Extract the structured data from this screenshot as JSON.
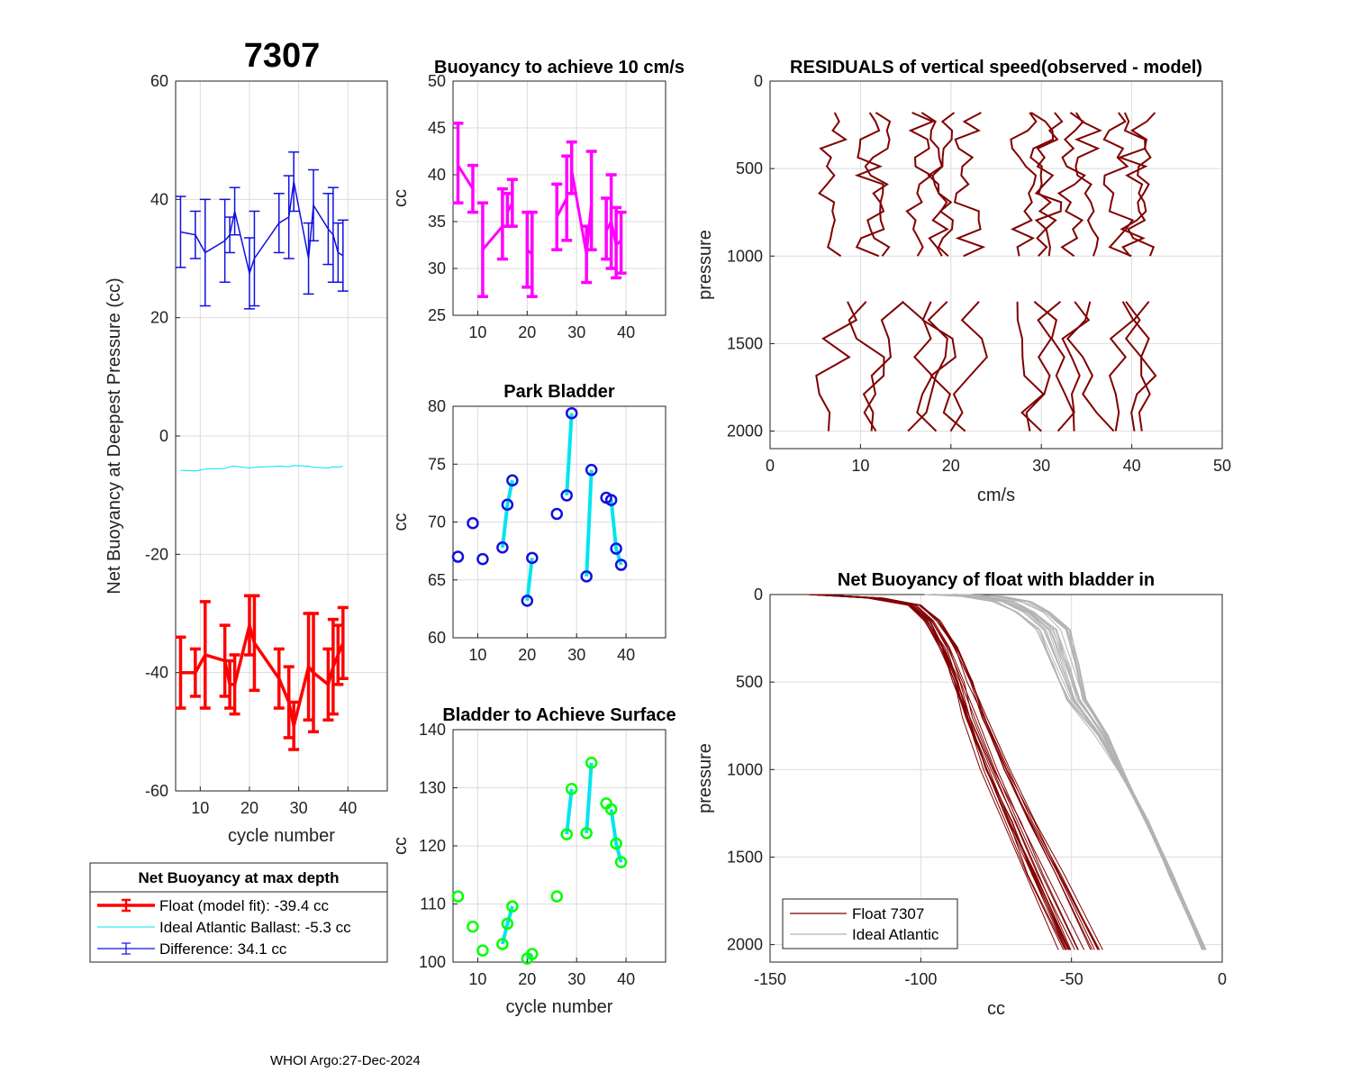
{
  "main_title": "7307",
  "footer": "WHOI Argo:27-Dec-2024",
  "colors": {
    "blue": "#1010e0",
    "red": "#ff0000",
    "cyan": "#00e5f0",
    "magenta": "#ff00ff",
    "green": "#00ff00",
    "dark_red": "#800000",
    "gray": "#b3b3b3"
  },
  "legend_main": {
    "title": "Net Buoyancy at max depth",
    "float": "Float (model fit): -39.4 cc",
    "ideal": "Ideal Atlantic Ballast:  -5.3 cc",
    "diff": "Difference:  34.1 cc"
  },
  "chart_data": [
    {
      "id": "net_buoyancy_deepest",
      "type": "line",
      "title": "7307",
      "xlabel": "cycle number",
      "ylabel": "Net Buoyancy at Deepest Pressure (cc)",
      "xlim": [
        5,
        48
      ],
      "ylim": [
        -60,
        60
      ],
      "xticks": [
        10,
        20,
        30,
        40
      ],
      "yticks": [
        -60,
        -40,
        -20,
        0,
        20,
        40,
        60
      ],
      "series": [
        {
          "name": "Difference",
          "color": "blue",
          "x": [
            6,
            9,
            11,
            15,
            16,
            17,
            20,
            21,
            26,
            28,
            29,
            32,
            33,
            36,
            37,
            38,
            39
          ],
          "y": [
            34.5,
            34,
            31,
            33,
            34,
            38,
            27.5,
            30,
            36,
            37,
            43,
            30,
            39,
            35,
            34,
            31,
            30.5
          ],
          "err": [
            6,
            4,
            9,
            7,
            3,
            4,
            6,
            8,
            5,
            7,
            5,
            6,
            6,
            6,
            8,
            5,
            6
          ]
        },
        {
          "name": "Ideal Atlantic Ballast",
          "color": "cyan",
          "x": [
            6,
            9,
            11,
            15,
            16,
            17,
            20,
            21,
            26,
            28,
            29,
            32,
            33,
            36,
            37,
            38,
            39
          ],
          "y": [
            -5.8,
            -5.9,
            -5.6,
            -5.5,
            -5.2,
            -5.1,
            -5.4,
            -5.3,
            -5.1,
            -5.2,
            -5.0,
            -5.1,
            -5.3,
            -5.4,
            -5.2,
            -5.3,
            -5.1
          ]
        },
        {
          "name": "Float (model fit)",
          "color": "red",
          "x": [
            6,
            9,
            11,
            15,
            16,
            17,
            20,
            21,
            26,
            28,
            29,
            32,
            33,
            36,
            37,
            38,
            39
          ],
          "y": [
            -40,
            -40,
            -37,
            -38,
            -42,
            -42,
            -32,
            -35,
            -41,
            -45,
            -49,
            -39,
            -40,
            -42,
            -39,
            -37,
            -35
          ],
          "err": [
            6,
            4,
            9,
            6,
            4,
            5,
            5,
            8,
            5,
            6,
            4,
            9,
            10,
            6,
            8,
            5,
            6
          ]
        }
      ]
    },
    {
      "id": "buoyancy_10cms",
      "type": "errorbar",
      "title": "Buoyancy to achieve 10 cm/s",
      "xlabel": "",
      "ylabel": "cc",
      "xlim": [
        5,
        48
      ],
      "ylim": [
        25,
        50
      ],
      "xticks": [
        10,
        20,
        30,
        40
      ],
      "yticks": [
        25,
        30,
        35,
        40,
        45,
        50
      ],
      "color": "magenta",
      "segments": [
        [
          6,
          9
        ],
        [
          11,
          15
        ],
        [
          16,
          17
        ],
        [
          20,
          21
        ],
        [
          26,
          28
        ],
        [
          29,
          32
        ],
        [
          32,
          33
        ],
        [
          36,
          37
        ],
        [
          37,
          38
        ],
        [
          38,
          39
        ]
      ],
      "x": [
        6,
        9,
        11,
        15,
        16,
        17,
        20,
        21,
        26,
        28,
        29,
        32,
        33,
        36,
        37,
        38,
        39
      ],
      "lo": [
        37,
        36,
        27,
        31,
        34.5,
        34.5,
        28,
        27,
        32,
        33,
        38,
        28.5,
        32,
        31,
        30,
        29,
        29.5
      ],
      "hi": [
        45.5,
        41,
        37,
        38.5,
        38,
        39.5,
        36,
        36,
        39,
        42,
        43.5,
        34.5,
        42.5,
        37.5,
        40,
        36.5,
        36
      ],
      "y": [
        41,
        38.5,
        32,
        34.5,
        36,
        37,
        32,
        31.5,
        35.5,
        37.5,
        40.5,
        31.5,
        37,
        34,
        35,
        32.5,
        33
      ]
    },
    {
      "id": "park_bladder",
      "type": "scatter",
      "title": "Park Bladder",
      "xlabel": "",
      "ylabel": "cc",
      "xlim": [
        5,
        48
      ],
      "ylim": [
        60,
        80
      ],
      "xticks": [
        10,
        20,
        30,
        40
      ],
      "yticks": [
        60,
        65,
        70,
        75,
        80
      ],
      "marker_color": "blue",
      "line_color": "cyan",
      "x": [
        6,
        9,
        11,
        15,
        16,
        17,
        20,
        21,
        26,
        28,
        29,
        32,
        33,
        36,
        37,
        38,
        39
      ],
      "y": [
        67,
        69.9,
        66.8,
        67.8,
        71.5,
        73.6,
        63.2,
        66.9,
        70.7,
        72.3,
        79.4,
        65.3,
        74.5,
        72.1,
        71.9,
        67.7,
        66.3
      ],
      "lines": [
        [
          15,
          17
        ],
        [
          20,
          21
        ],
        [
          28,
          29
        ],
        [
          32,
          33
        ],
        [
          37,
          39
        ]
      ]
    },
    {
      "id": "bladder_surface",
      "type": "scatter",
      "title": "Bladder to Achieve Surface",
      "xlabel": "cycle number",
      "ylabel": "cc",
      "xlim": [
        5,
        48
      ],
      "ylim": [
        100,
        140
      ],
      "xticks": [
        10,
        20,
        30,
        40
      ],
      "yticks": [
        100,
        110,
        120,
        130,
        140
      ],
      "marker_color": "green",
      "line_color": "cyan",
      "x": [
        6,
        9,
        11,
        15,
        16,
        17,
        20,
        21,
        26,
        28,
        29,
        32,
        33,
        36,
        37,
        38,
        39
      ],
      "y": [
        111.3,
        106.1,
        102,
        103.1,
        106.6,
        109.6,
        100.6,
        101.4,
        111.3,
        122,
        129.8,
        122.2,
        134.3,
        127.3,
        126.3,
        120.4,
        117.2
      ],
      "lines": [
        [
          15,
          17
        ],
        [
          20,
          21
        ],
        [
          28,
          29
        ],
        [
          32,
          33
        ],
        [
          37,
          39
        ]
      ]
    },
    {
      "id": "residuals",
      "type": "line",
      "title": "RESIDUALS of vertical speed(observed - model)",
      "xlabel": "cm/s",
      "ylabel": "pressure",
      "xlim": [
        0,
        50
      ],
      "ylim": [
        0,
        2100
      ],
      "y_reversed": true,
      "xticks": [
        0,
        10,
        20,
        30,
        40,
        50
      ],
      "yticks": [
        0,
        500,
        1000,
        1500,
        2000
      ],
      "color": "dark_red",
      "profile_centers": [
        7,
        11,
        12,
        16.5,
        18,
        19,
        22,
        28,
        30,
        31,
        33.5,
        35,
        38.5,
        40,
        41
      ],
      "upper_range": [
        180,
        1000
      ],
      "lower_range": [
        1260,
        2000
      ]
    },
    {
      "id": "net_buoyancy_bladder_in",
      "type": "line",
      "title": "Net Buoyancy of float with bladder in",
      "xlabel": "cc",
      "ylabel": "pressure",
      "xlim": [
        -150,
        0
      ],
      "ylim": [
        0,
        2100
      ],
      "y_reversed": true,
      "xticks": [
        -150,
        -100,
        -50,
        0
      ],
      "yticks": [
        0,
        500,
        1000,
        1500,
        2000
      ],
      "legend": [
        "Float 7307",
        "Ideal Atlantic"
      ],
      "float_profile": {
        "p": [
          0,
          20,
          60,
          150,
          300,
          500,
          700,
          1000,
          1300,
          1600,
          2030
        ],
        "x": [
          -135,
          -115,
          -102,
          -96,
          -91,
          -86,
          -82,
          -75,
          -67,
          -59,
          -47
        ]
      },
      "ideal_profile": {
        "p": [
          0,
          10,
          40,
          100,
          200,
          400,
          600,
          800,
          1000,
          1300,
          1600,
          2030
        ],
        "x": [
          -92,
          -80,
          -70,
          -63,
          -56,
          -52,
          -48,
          -40,
          -34,
          -25,
          -17,
          -6
        ]
      }
    }
  ]
}
